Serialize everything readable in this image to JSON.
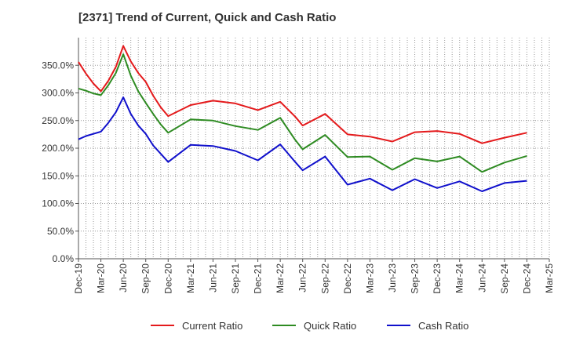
{
  "chart_data": {
    "type": "line",
    "title": "[2371]  Trend of Current, Quick and Cash Ratio",
    "xlabel": "",
    "ylabel": "",
    "ylim": [
      0,
      400
    ],
    "yticks": [
      "0.0%",
      "50.0%",
      "100.0%",
      "150.0%",
      "200.0%",
      "250.0%",
      "300.0%",
      "350.0%"
    ],
    "ytick_values": [
      0,
      50,
      100,
      150,
      200,
      250,
      300,
      350
    ],
    "xticks": [
      "Dec-19",
      "Mar-20",
      "Jun-20",
      "Sep-20",
      "Dec-20",
      "Mar-21",
      "Jun-21",
      "Sep-21",
      "Dec-21",
      "Mar-22",
      "Jun-22",
      "Sep-22",
      "Dec-22",
      "Mar-23",
      "Jun-23",
      "Sep-23",
      "Dec-23",
      "Mar-24",
      "Jun-24",
      "Sep-24",
      "Dec-24",
      "Mar-25"
    ],
    "x_months": 63,
    "legend_position": "bottom",
    "grid": true,
    "series": [
      {
        "name": "Current Ratio",
        "color": "#e41a1c",
        "points": [
          [
            0,
            356
          ],
          [
            1,
            335
          ],
          [
            2,
            317
          ],
          [
            3,
            303
          ],
          [
            4,
            322
          ],
          [
            5,
            347
          ],
          [
            6,
            385
          ],
          [
            7,
            357
          ],
          [
            8,
            336
          ],
          [
            9,
            320
          ],
          [
            10,
            295
          ],
          [
            11,
            274
          ],
          [
            12,
            258
          ],
          [
            15,
            278
          ],
          [
            18,
            286
          ],
          [
            21,
            281
          ],
          [
            24,
            269
          ],
          [
            27,
            284
          ],
          [
            29,
            257
          ],
          [
            30,
            241
          ],
          [
            33,
            262
          ],
          [
            36,
            225
          ],
          [
            39,
            221
          ],
          [
            42,
            212
          ],
          [
            45,
            229
          ],
          [
            48,
            231
          ],
          [
            51,
            226
          ],
          [
            54,
            209
          ],
          [
            57,
            219
          ],
          [
            60,
            228
          ]
        ]
      },
      {
        "name": "Quick Ratio",
        "color": "#2e8b22",
        "points": [
          [
            0,
            308
          ],
          [
            1,
            304
          ],
          [
            2,
            299
          ],
          [
            3,
            296
          ],
          [
            4,
            314
          ],
          [
            5,
            336
          ],
          [
            6,
            370
          ],
          [
            7,
            331
          ],
          [
            8,
            303
          ],
          [
            9,
            282
          ],
          [
            10,
            262
          ],
          [
            11,
            243
          ],
          [
            12,
            228
          ],
          [
            15,
            252
          ],
          [
            18,
            250
          ],
          [
            21,
            240
          ],
          [
            24,
            233
          ],
          [
            27,
            255
          ],
          [
            29,
            215
          ],
          [
            30,
            198
          ],
          [
            33,
            224
          ],
          [
            36,
            184
          ],
          [
            39,
            185
          ],
          [
            42,
            161
          ],
          [
            45,
            182
          ],
          [
            48,
            176
          ],
          [
            51,
            185
          ],
          [
            54,
            157
          ],
          [
            57,
            174
          ],
          [
            60,
            186
          ]
        ]
      },
      {
        "name": "Cash Ratio",
        "color": "#1010cc",
        "points": [
          [
            0,
            216
          ],
          [
            1,
            222
          ],
          [
            2,
            226
          ],
          [
            3,
            230
          ],
          [
            4,
            246
          ],
          [
            5,
            265
          ],
          [
            6,
            292
          ],
          [
            7,
            262
          ],
          [
            8,
            241
          ],
          [
            9,
            226
          ],
          [
            10,
            205
          ],
          [
            11,
            190
          ],
          [
            12,
            175
          ],
          [
            15,
            206
          ],
          [
            18,
            204
          ],
          [
            21,
            195
          ],
          [
            24,
            178
          ],
          [
            27,
            207
          ],
          [
            29,
            175
          ],
          [
            30,
            160
          ],
          [
            33,
            185
          ],
          [
            36,
            134
          ],
          [
            39,
            145
          ],
          [
            42,
            124
          ],
          [
            45,
            144
          ],
          [
            48,
            128
          ],
          [
            51,
            140
          ],
          [
            54,
            122
          ],
          [
            57,
            137
          ],
          [
            60,
            141
          ]
        ]
      }
    ]
  }
}
